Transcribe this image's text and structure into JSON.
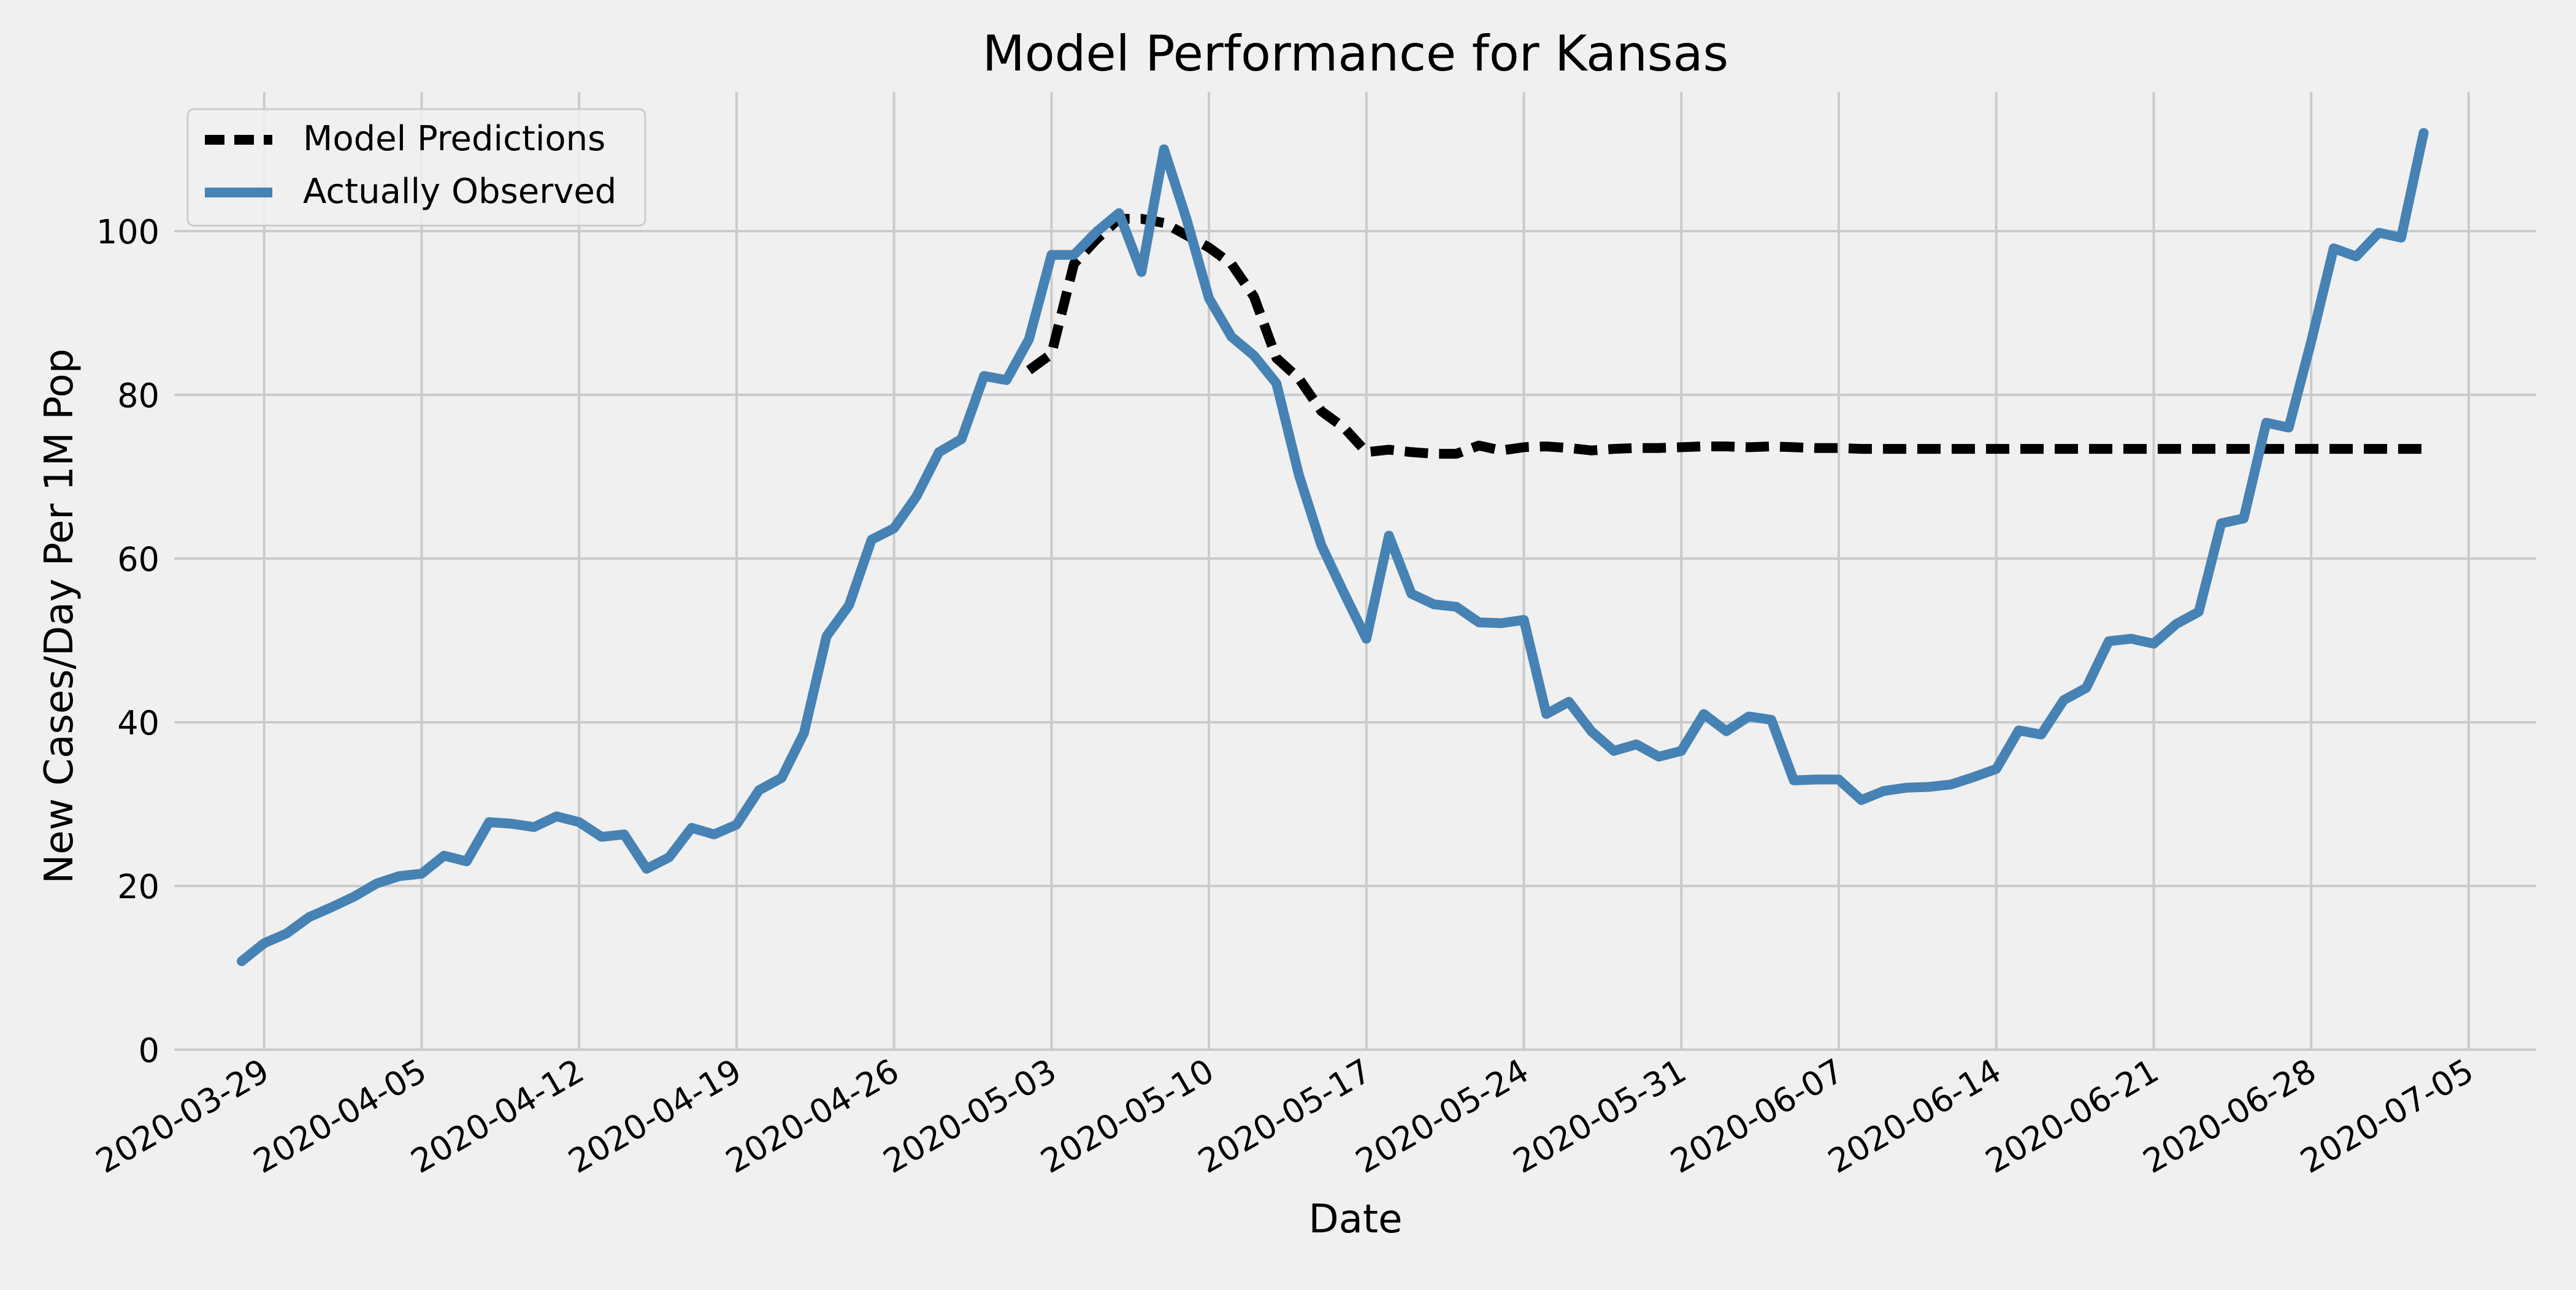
{
  "chart_data": {
    "type": "line",
    "title": "Model Performance for Kansas",
    "xlabel": "Date",
    "ylabel": "New Cases/Day Per 1M Pop",
    "x_type": "date",
    "xlim": [
      "2020-03-25",
      "2020-07-08"
    ],
    "ylim": [
      0,
      117
    ],
    "x_ticks": [
      "2020-03-29",
      "2020-04-05",
      "2020-04-12",
      "2020-04-19",
      "2020-04-26",
      "2020-05-03",
      "2020-05-10",
      "2020-05-17",
      "2020-05-24",
      "2020-05-31",
      "2020-06-07",
      "2020-06-14",
      "2020-06-21",
      "2020-06-28",
      "2020-07-05"
    ],
    "y_ticks": [
      0,
      20,
      40,
      60,
      80,
      100
    ],
    "grid": true,
    "legend_position": "top-left",
    "colors": {
      "background": "#f0f0f0",
      "grid": "#cbcbcb",
      "observed": "#4682b4",
      "predicted": "#000000"
    },
    "series": [
      {
        "name": "Model Predictions",
        "style": "dashed",
        "color": "#000000",
        "points": [
          [
            "2020-05-02",
            83.0
          ],
          [
            "2020-05-03",
            85.0
          ],
          [
            "2020-05-04",
            96.0
          ],
          [
            "2020-05-05",
            99.0
          ],
          [
            "2020-05-06",
            101.5
          ],
          [
            "2020-05-07",
            101.5
          ],
          [
            "2020-05-08",
            101.0
          ],
          [
            "2020-05-09",
            99.5
          ],
          [
            "2020-05-10",
            98.0
          ],
          [
            "2020-05-11",
            96.0
          ],
          [
            "2020-05-12",
            92.0
          ],
          [
            "2020-05-13",
            84.5
          ],
          [
            "2020-05-14",
            82.0
          ],
          [
            "2020-05-15",
            78.0
          ],
          [
            "2020-05-16",
            76.0
          ],
          [
            "2020-05-17",
            73.0
          ],
          [
            "2020-05-18",
            73.3
          ],
          [
            "2020-05-19",
            73.0
          ],
          [
            "2020-05-20",
            72.8
          ],
          [
            "2020-05-21",
            72.8
          ],
          [
            "2020-05-22",
            73.8
          ],
          [
            "2020-05-23",
            73.2
          ],
          [
            "2020-05-24",
            73.6
          ],
          [
            "2020-05-25",
            73.7
          ],
          [
            "2020-05-26",
            73.5
          ],
          [
            "2020-05-27",
            73.2
          ],
          [
            "2020-05-28",
            73.4
          ],
          [
            "2020-05-29",
            73.5
          ],
          [
            "2020-05-30",
            73.5
          ],
          [
            "2020-05-31",
            73.6
          ],
          [
            "2020-06-01",
            73.7
          ],
          [
            "2020-06-02",
            73.7
          ],
          [
            "2020-06-03",
            73.6
          ],
          [
            "2020-06-04",
            73.7
          ],
          [
            "2020-06-05",
            73.6
          ],
          [
            "2020-06-06",
            73.5
          ],
          [
            "2020-06-07",
            73.5
          ],
          [
            "2020-06-08",
            73.4
          ],
          [
            "2020-06-09",
            73.4
          ],
          [
            "2020-06-10",
            73.4
          ],
          [
            "2020-06-11",
            73.4
          ],
          [
            "2020-06-12",
            73.4
          ],
          [
            "2020-06-13",
            73.4
          ],
          [
            "2020-06-14",
            73.4
          ],
          [
            "2020-06-15",
            73.4
          ],
          [
            "2020-06-16",
            73.4
          ],
          [
            "2020-06-17",
            73.4
          ],
          [
            "2020-06-18",
            73.4
          ],
          [
            "2020-06-19",
            73.4
          ],
          [
            "2020-06-20",
            73.4
          ],
          [
            "2020-06-21",
            73.4
          ],
          [
            "2020-06-22",
            73.4
          ],
          [
            "2020-06-23",
            73.4
          ],
          [
            "2020-06-24",
            73.4
          ],
          [
            "2020-06-25",
            73.4
          ],
          [
            "2020-06-26",
            73.4
          ],
          [
            "2020-06-27",
            73.4
          ],
          [
            "2020-06-28",
            73.4
          ],
          [
            "2020-06-29",
            73.4
          ],
          [
            "2020-06-30",
            73.4
          ],
          [
            "2020-07-01",
            73.4
          ],
          [
            "2020-07-02",
            73.4
          ],
          [
            "2020-07-03",
            73.4
          ]
        ]
      },
      {
        "name": "Actually Observed",
        "style": "solid",
        "color": "#4682b4",
        "points": [
          [
            "2020-03-28",
            10.8
          ],
          [
            "2020-03-29",
            13.0
          ],
          [
            "2020-03-30",
            14.2
          ],
          [
            "2020-03-31",
            16.2
          ],
          [
            "2020-04-01",
            17.4
          ],
          [
            "2020-04-02",
            18.7
          ],
          [
            "2020-04-03",
            20.3
          ],
          [
            "2020-04-04",
            21.2
          ],
          [
            "2020-04-05",
            21.5
          ],
          [
            "2020-04-06",
            23.7
          ],
          [
            "2020-04-07",
            23.0
          ],
          [
            "2020-04-08",
            27.8
          ],
          [
            "2020-04-09",
            27.6
          ],
          [
            "2020-04-10",
            27.2
          ],
          [
            "2020-04-11",
            28.5
          ],
          [
            "2020-04-12",
            27.8
          ],
          [
            "2020-04-13",
            26.0
          ],
          [
            "2020-04-14",
            26.3
          ],
          [
            "2020-04-15",
            22.1
          ],
          [
            "2020-04-16",
            23.5
          ],
          [
            "2020-04-17",
            27.1
          ],
          [
            "2020-04-18",
            26.3
          ],
          [
            "2020-04-19",
            27.5
          ],
          [
            "2020-04-20",
            31.7
          ],
          [
            "2020-04-21",
            33.2
          ],
          [
            "2020-04-22",
            38.7
          ],
          [
            "2020-04-23",
            50.5
          ],
          [
            "2020-04-24",
            54.3
          ],
          [
            "2020-04-25",
            62.3
          ],
          [
            "2020-04-26",
            63.7
          ],
          [
            "2020-04-27",
            67.6
          ],
          [
            "2020-04-28",
            73.0
          ],
          [
            "2020-04-29",
            74.6
          ],
          [
            "2020-04-30",
            82.3
          ],
          [
            "2020-05-01",
            81.8
          ],
          [
            "2020-05-02",
            86.8
          ],
          [
            "2020-05-03",
            97.1
          ],
          [
            "2020-05-04",
            97.1
          ],
          [
            "2020-05-05",
            99.9
          ],
          [
            "2020-05-06",
            102.2
          ],
          [
            "2020-05-07",
            95.0
          ],
          [
            "2020-05-08",
            110.0
          ],
          [
            "2020-05-09",
            101.5
          ],
          [
            "2020-05-10",
            91.8
          ],
          [
            "2020-05-11",
            87.1
          ],
          [
            "2020-05-12",
            84.8
          ],
          [
            "2020-05-13",
            81.4
          ],
          [
            "2020-05-14",
            70.2
          ],
          [
            "2020-05-15",
            61.6
          ],
          [
            "2020-05-16",
            55.8
          ],
          [
            "2020-05-17",
            50.2
          ],
          [
            "2020-05-18",
            62.8
          ],
          [
            "2020-05-19",
            55.7
          ],
          [
            "2020-05-20",
            54.4
          ],
          [
            "2020-05-21",
            54.1
          ],
          [
            "2020-05-22",
            52.2
          ],
          [
            "2020-05-23",
            52.1
          ],
          [
            "2020-05-24",
            52.5
          ],
          [
            "2020-05-25",
            41.0
          ],
          [
            "2020-05-26",
            42.5
          ],
          [
            "2020-05-27",
            38.9
          ],
          [
            "2020-05-28",
            36.5
          ],
          [
            "2020-05-29",
            37.3
          ],
          [
            "2020-05-30",
            35.8
          ],
          [
            "2020-05-31",
            36.5
          ],
          [
            "2020-06-01",
            41.0
          ],
          [
            "2020-06-02",
            38.9
          ],
          [
            "2020-06-03",
            40.7
          ],
          [
            "2020-06-04",
            40.3
          ],
          [
            "2020-06-05",
            32.9
          ],
          [
            "2020-06-06",
            33.0
          ],
          [
            "2020-06-07",
            33.0
          ],
          [
            "2020-06-08",
            30.5
          ],
          [
            "2020-06-09",
            31.6
          ],
          [
            "2020-06-10",
            32.0
          ],
          [
            "2020-06-11",
            32.1
          ],
          [
            "2020-06-12",
            32.4
          ],
          [
            "2020-06-13",
            33.3
          ],
          [
            "2020-06-14",
            34.3
          ],
          [
            "2020-06-15",
            39.0
          ],
          [
            "2020-06-16",
            38.5
          ],
          [
            "2020-06-17",
            42.7
          ],
          [
            "2020-06-18",
            44.2
          ],
          [
            "2020-06-19",
            49.9
          ],
          [
            "2020-06-20",
            50.2
          ],
          [
            "2020-06-21",
            49.6
          ],
          [
            "2020-06-22",
            52.0
          ],
          [
            "2020-06-23",
            53.5
          ],
          [
            "2020-06-24",
            64.3
          ],
          [
            "2020-06-25",
            64.9
          ],
          [
            "2020-06-26",
            76.6
          ],
          [
            "2020-06-27",
            76.0
          ],
          [
            "2020-06-28",
            86.5
          ],
          [
            "2020-06-29",
            97.9
          ],
          [
            "2020-06-30",
            96.9
          ],
          [
            "2020-07-01",
            99.8
          ],
          [
            "2020-07-02",
            99.2
          ],
          [
            "2020-07-03",
            112.0
          ]
        ]
      }
    ]
  }
}
